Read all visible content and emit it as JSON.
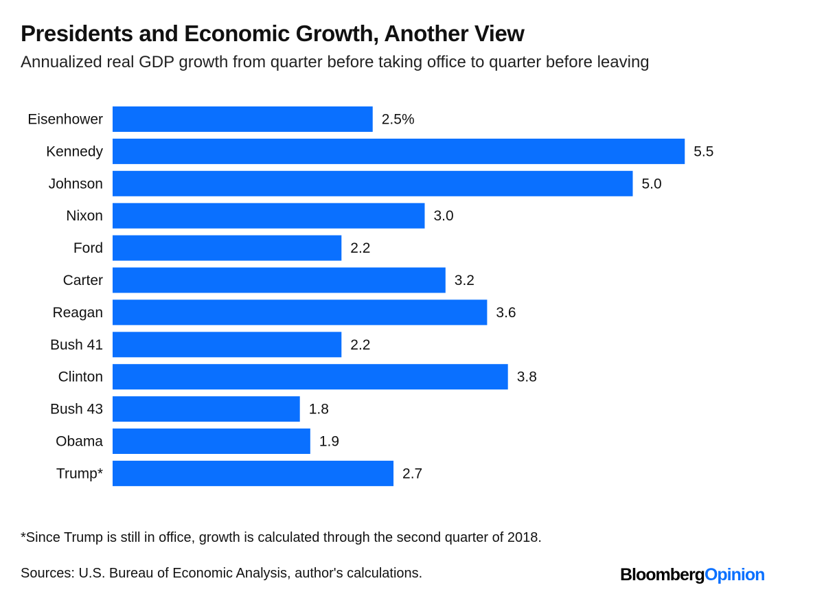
{
  "chart_data": {
    "type": "bar",
    "orientation": "horizontal",
    "title": "Presidents and Economic Growth, Another View",
    "subtitle": "Annualized real GDP growth from quarter before taking office to quarter before leaving",
    "categories": [
      "Eisenhower",
      "Kennedy",
      "Johnson",
      "Nixon",
      "Ford",
      "Carter",
      "Reagan",
      "Bush 41",
      "Clinton",
      "Bush 43",
      "Obama",
      "Trump*"
    ],
    "values": [
      2.5,
      5.5,
      5.0,
      3.0,
      2.2,
      3.2,
      3.6,
      2.2,
      3.8,
      1.8,
      1.9,
      2.7
    ],
    "value_labels": [
      "2.5%",
      "5.5",
      "5.0",
      "3.0",
      "2.2",
      "3.2",
      "3.6",
      "2.2",
      "3.8",
      "1.8",
      "1.9",
      "2.7"
    ],
    "unit": "%",
    "xlim": [
      0,
      5.5
    ],
    "grid": false,
    "bar_color": "#0a70ff"
  },
  "footnote": "*Since Trump is still in office, growth is calculated through the second quarter of 2018.",
  "source": "Sources: U.S. Bureau of Economic Analysis, author's calculations.",
  "logo": {
    "part1": "Bloomberg",
    "part2": "Opinion"
  }
}
